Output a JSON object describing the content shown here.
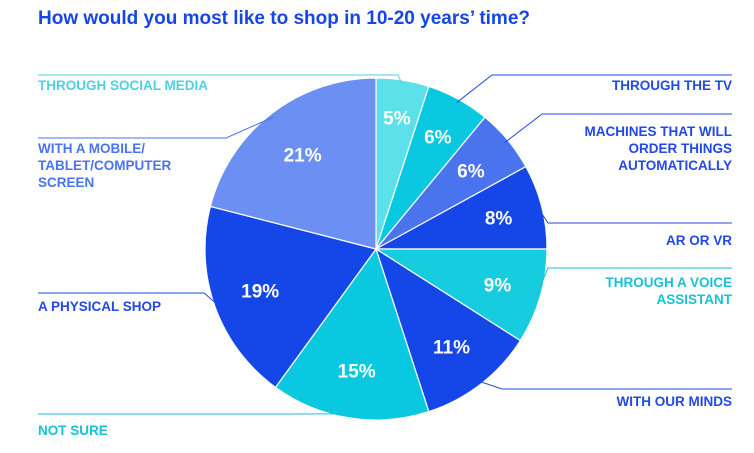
{
  "chart_data": {
    "type": "pie",
    "title": "How would you most like to shop in 10-20 years’ time?",
    "slices": [
      {
        "label": [
          "THROUGH SOCIAL MEDIA"
        ],
        "pct_text": "5%",
        "value": 5,
        "color": "#5ce0ea",
        "label_color": "#4fd0e0"
      },
      {
        "label": [
          "THROUGH THE TV"
        ],
        "pct_text": "6%",
        "value": 6,
        "color": "#0ac8e0",
        "label_color": "#2248e8"
      },
      {
        "label": [
          "MACHINES THAT WILL",
          "ORDER THINGS",
          "AUTOMATICALLY"
        ],
        "pct_text": "6%",
        "value": 6,
        "color": "#4a73ee",
        "label_color": "#2248e8"
      },
      {
        "label": [
          "AR OR VR"
        ],
        "pct_text": "8%",
        "value": 8,
        "color": "#1446e8",
        "label_color": "#2248e8"
      },
      {
        "label": [
          "THROUGH A VOICE",
          "ASSISTANT"
        ],
        "pct_text": "9%",
        "value": 9,
        "color": "#18cce0",
        "label_color": "#18c0d8"
      },
      {
        "label": [
          "WITH OUR MINDS"
        ],
        "pct_text": "11%",
        "value": 11,
        "color": "#1446e8",
        "label_color": "#2248e8"
      },
      {
        "label": [
          "NOT SURE"
        ],
        "pct_text": "15%",
        "value": 15,
        "color": "#0ac8e0",
        "label_color": "#18c0d8"
      },
      {
        "label": [
          "A PHYSICAL SHOP"
        ],
        "pct_text": "19%",
        "value": 19,
        "color": "#1446e8",
        "label_color": "#2248e8"
      },
      {
        "label": [
          "WITH A MOBILE/",
          "TABLET/COMPUTER",
          "SCREEN"
        ],
        "pct_text": "21%",
        "value": 21,
        "color": "#6b8ff2",
        "label_color": "#4a73ee"
      }
    ]
  }
}
